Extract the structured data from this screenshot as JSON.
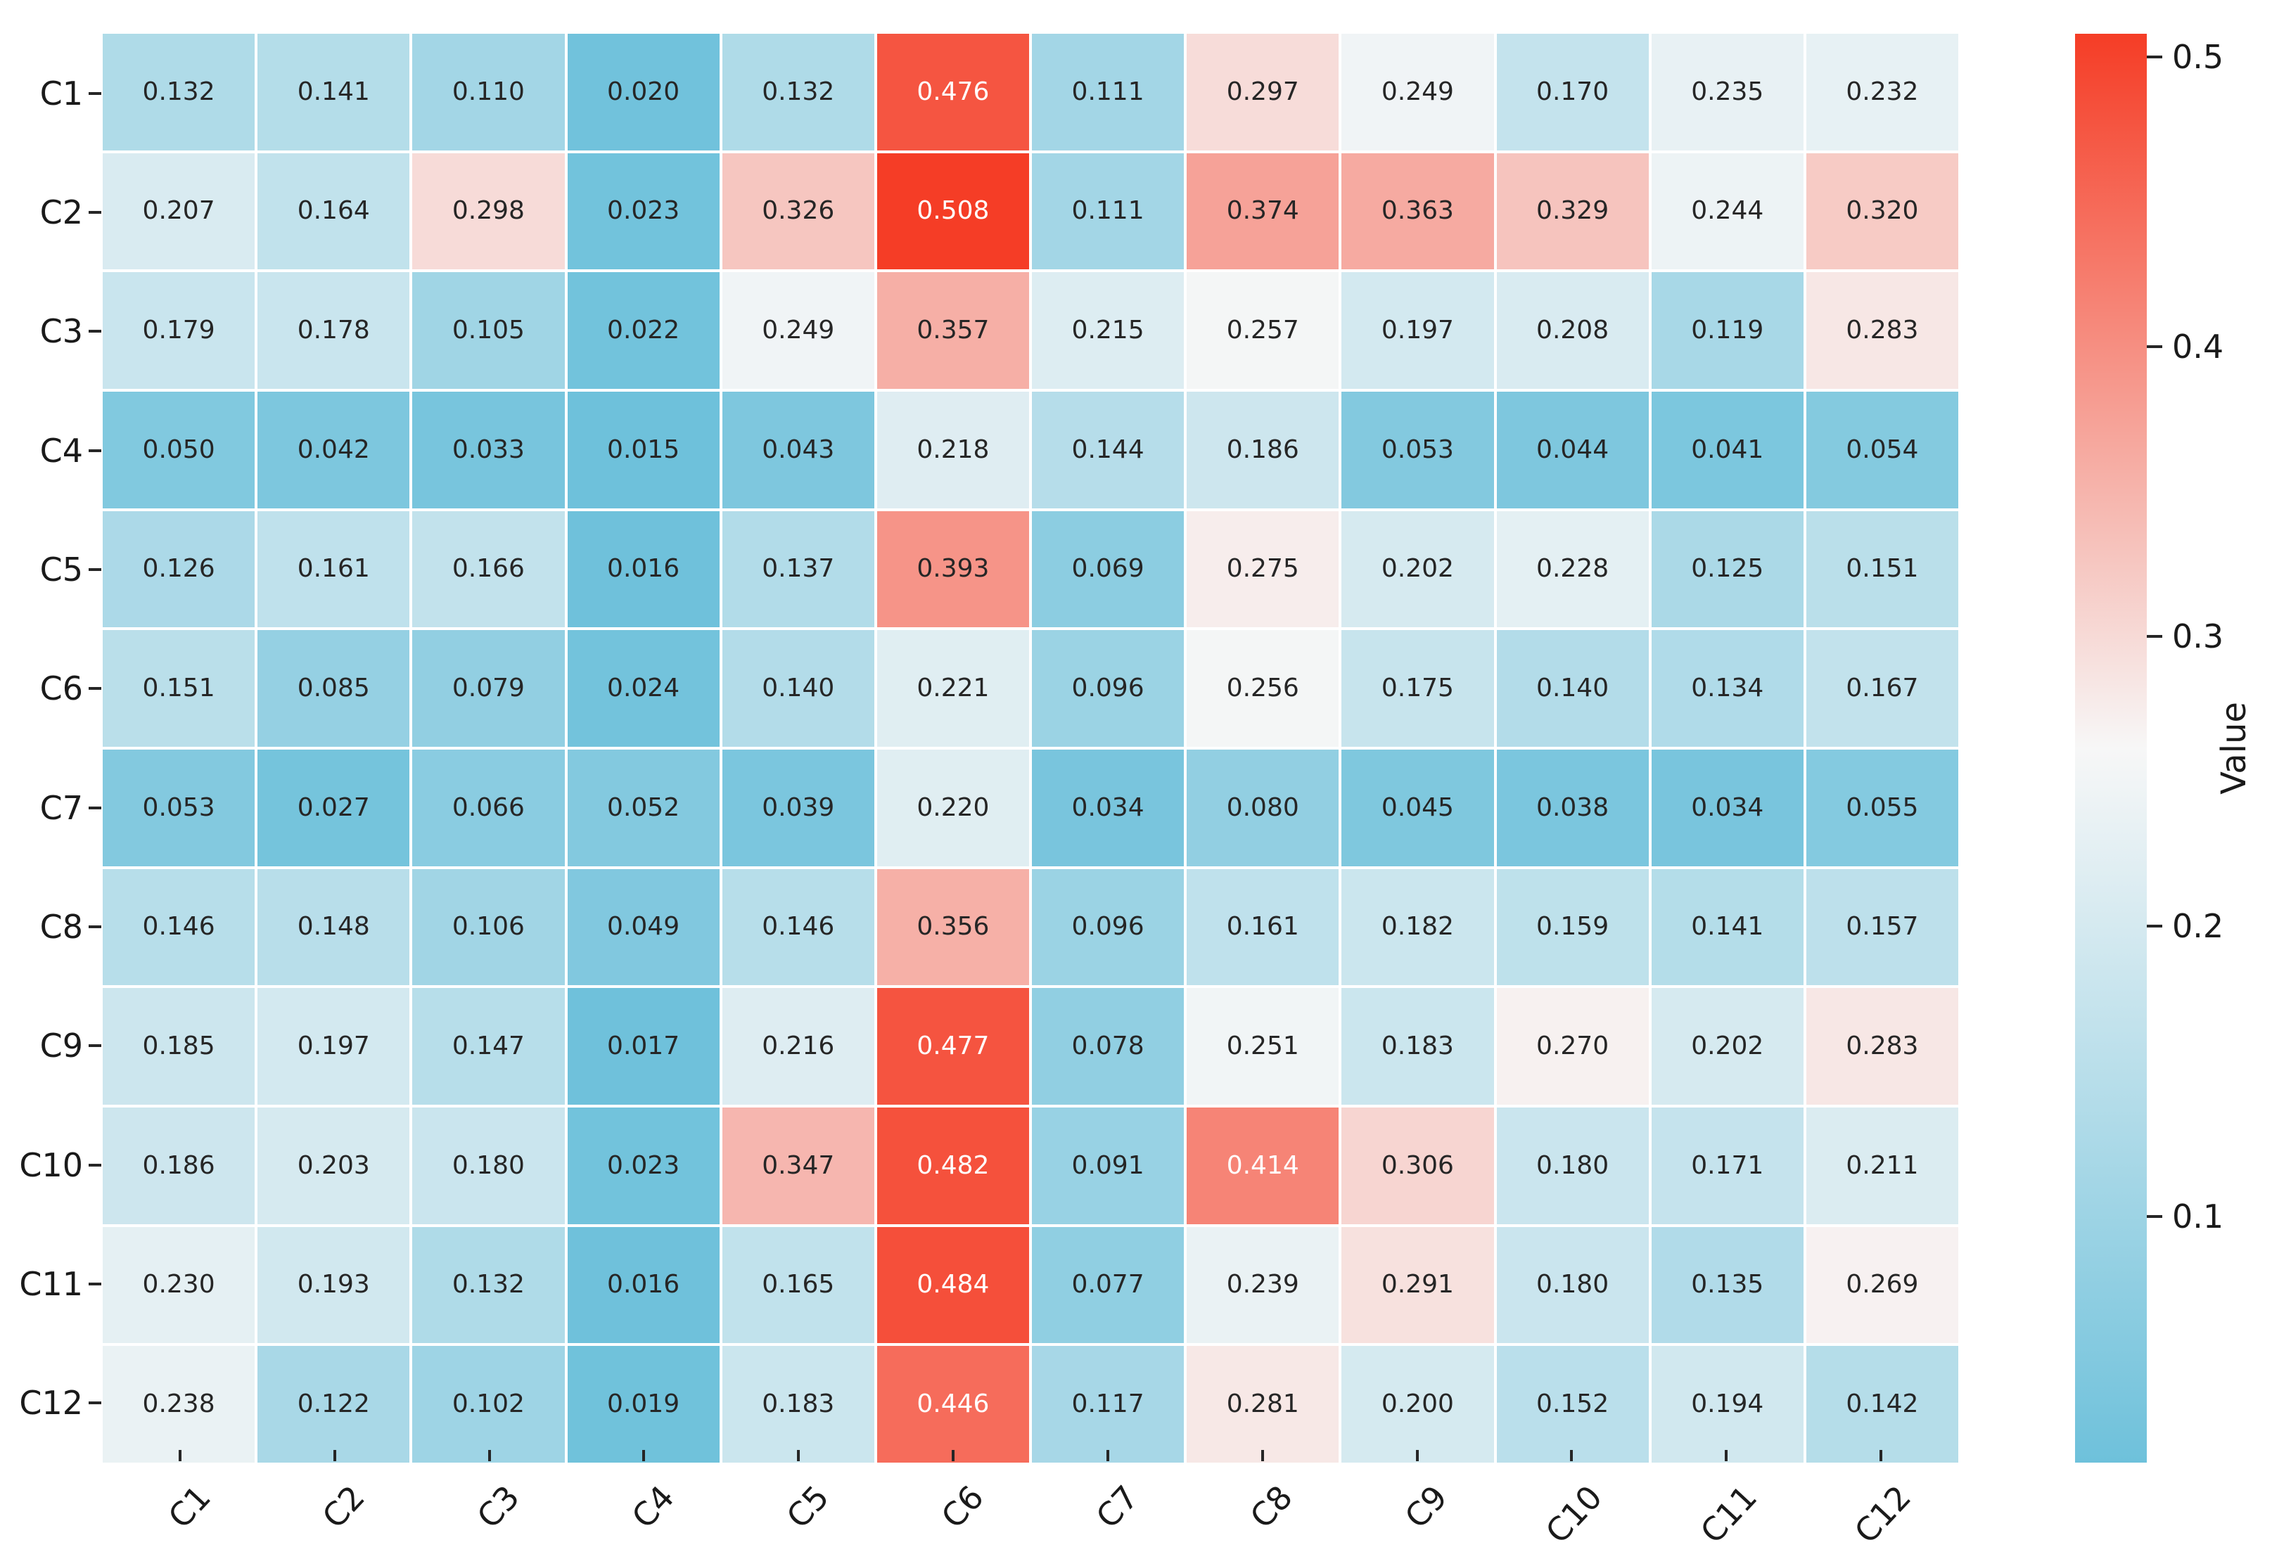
{
  "figure": {
    "background": "#ffffff"
  },
  "chart_data": {
    "type": "heatmap",
    "title": "",
    "row_labels": [
      "C1",
      "C2",
      "C3",
      "C4",
      "C5",
      "C6",
      "C7",
      "C8",
      "C9",
      "C10",
      "C11",
      "C12"
    ],
    "col_labels": [
      "C1",
      "C2",
      "C3",
      "C4",
      "C5",
      "C6",
      "C7",
      "C8",
      "C9",
      "C10",
      "C11",
      "C12"
    ],
    "values": [
      [
        0.132,
        0.141,
        0.11,
        0.02,
        0.132,
        0.476,
        0.111,
        0.297,
        0.249,
        0.17,
        0.235,
        0.232
      ],
      [
        0.207,
        0.164,
        0.298,
        0.023,
        0.326,
        0.508,
        0.111,
        0.374,
        0.363,
        0.329,
        0.244,
        0.32
      ],
      [
        0.179,
        0.178,
        0.105,
        0.022,
        0.249,
        0.357,
        0.215,
        0.257,
        0.197,
        0.208,
        0.119,
        0.283
      ],
      [
        0.05,
        0.042,
        0.033,
        0.015,
        0.043,
        0.218,
        0.144,
        0.186,
        0.053,
        0.044,
        0.041,
        0.054
      ],
      [
        0.126,
        0.161,
        0.166,
        0.016,
        0.137,
        0.393,
        0.069,
        0.275,
        0.202,
        0.228,
        0.125,
        0.151
      ],
      [
        0.151,
        0.085,
        0.079,
        0.024,
        0.14,
        0.221,
        0.096,
        0.256,
        0.175,
        0.14,
        0.134,
        0.167
      ],
      [
        0.053,
        0.027,
        0.066,
        0.052,
        0.039,
        0.22,
        0.034,
        0.08,
        0.045,
        0.038,
        0.034,
        0.055
      ],
      [
        0.146,
        0.148,
        0.106,
        0.049,
        0.146,
        0.356,
        0.096,
        0.161,
        0.182,
        0.159,
        0.141,
        0.157
      ],
      [
        0.185,
        0.197,
        0.147,
        0.017,
        0.216,
        0.477,
        0.078,
        0.251,
        0.183,
        0.27,
        0.202,
        0.283
      ],
      [
        0.186,
        0.203,
        0.18,
        0.023,
        0.347,
        0.482,
        0.091,
        0.414,
        0.306,
        0.18,
        0.171,
        0.211
      ],
      [
        0.23,
        0.193,
        0.132,
        0.016,
        0.165,
        0.484,
        0.077,
        0.239,
        0.291,
        0.18,
        0.135,
        0.269
      ],
      [
        0.238,
        0.122,
        0.102,
        0.019,
        0.183,
        0.446,
        0.117,
        0.281,
        0.2,
        0.152,
        0.194,
        0.142
      ]
    ],
    "value_decimals": 3,
    "vmin": 0.015,
    "vmax": 0.508,
    "colormap": {
      "low": "#6ec1db",
      "mid": "#f7f7f7",
      "high": "#f53d26"
    },
    "annotation_color_dark": "#262626",
    "annotation_color_light": "#ffffff",
    "light_text_threshold": 0.41,
    "grid_line_color": "#ffffff",
    "colorbar": {
      "label": "Value",
      "ticks": [
        "0.1",
        "0.2",
        "0.3",
        "0.4",
        "0.5"
      ],
      "tick_values": [
        0.1,
        0.2,
        0.3,
        0.4,
        0.5
      ],
      "position": "right"
    }
  }
}
